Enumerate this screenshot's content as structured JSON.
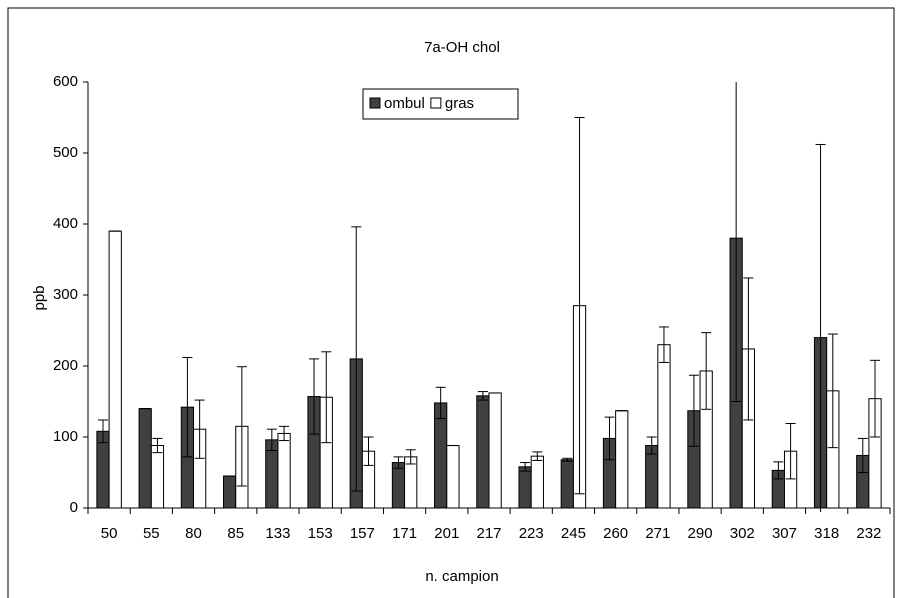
{
  "chart_data": {
    "type": "bar",
    "title": "7a-OH chol",
    "xlabel": "n. campion",
    "ylabel": "ppb",
    "categories": [
      "50",
      "55",
      "80",
      "85",
      "133",
      "153",
      "157",
      "171",
      "201",
      "217",
      "223",
      "245",
      "260",
      "271",
      "290",
      "302",
      "307",
      "318",
      "232"
    ],
    "series": [
      {
        "name": "ombul",
        "color": "#404040",
        "values": [
          108,
          140,
          142,
          45,
          96,
          157,
          210,
          64,
          148,
          158,
          58,
          68,
          98,
          88,
          137,
          380,
          53,
          240,
          74
        ],
        "errors": [
          16,
          0,
          70,
          0,
          15,
          53,
          186,
          8,
          22,
          6,
          6,
          2,
          30,
          12,
          50,
          230,
          12,
          272,
          24
        ]
      },
      {
        "name": "gras",
        "color": "#ffffff",
        "values": [
          390,
          88,
          111,
          115,
          105,
          156,
          80,
          72,
          88,
          162,
          73,
          285,
          137,
          230,
          193,
          224,
          80,
          165,
          154
        ],
        "errors": [
          0,
          10,
          41,
          84,
          10,
          64,
          20,
          10,
          0,
          0,
          6,
          265,
          0,
          25,
          54,
          100,
          39,
          80,
          54
        ]
      }
    ],
    "ylim": [
      0,
      600
    ],
    "yticks": [
      0,
      100,
      200,
      300,
      400,
      500,
      600
    ],
    "legend": "top"
  }
}
